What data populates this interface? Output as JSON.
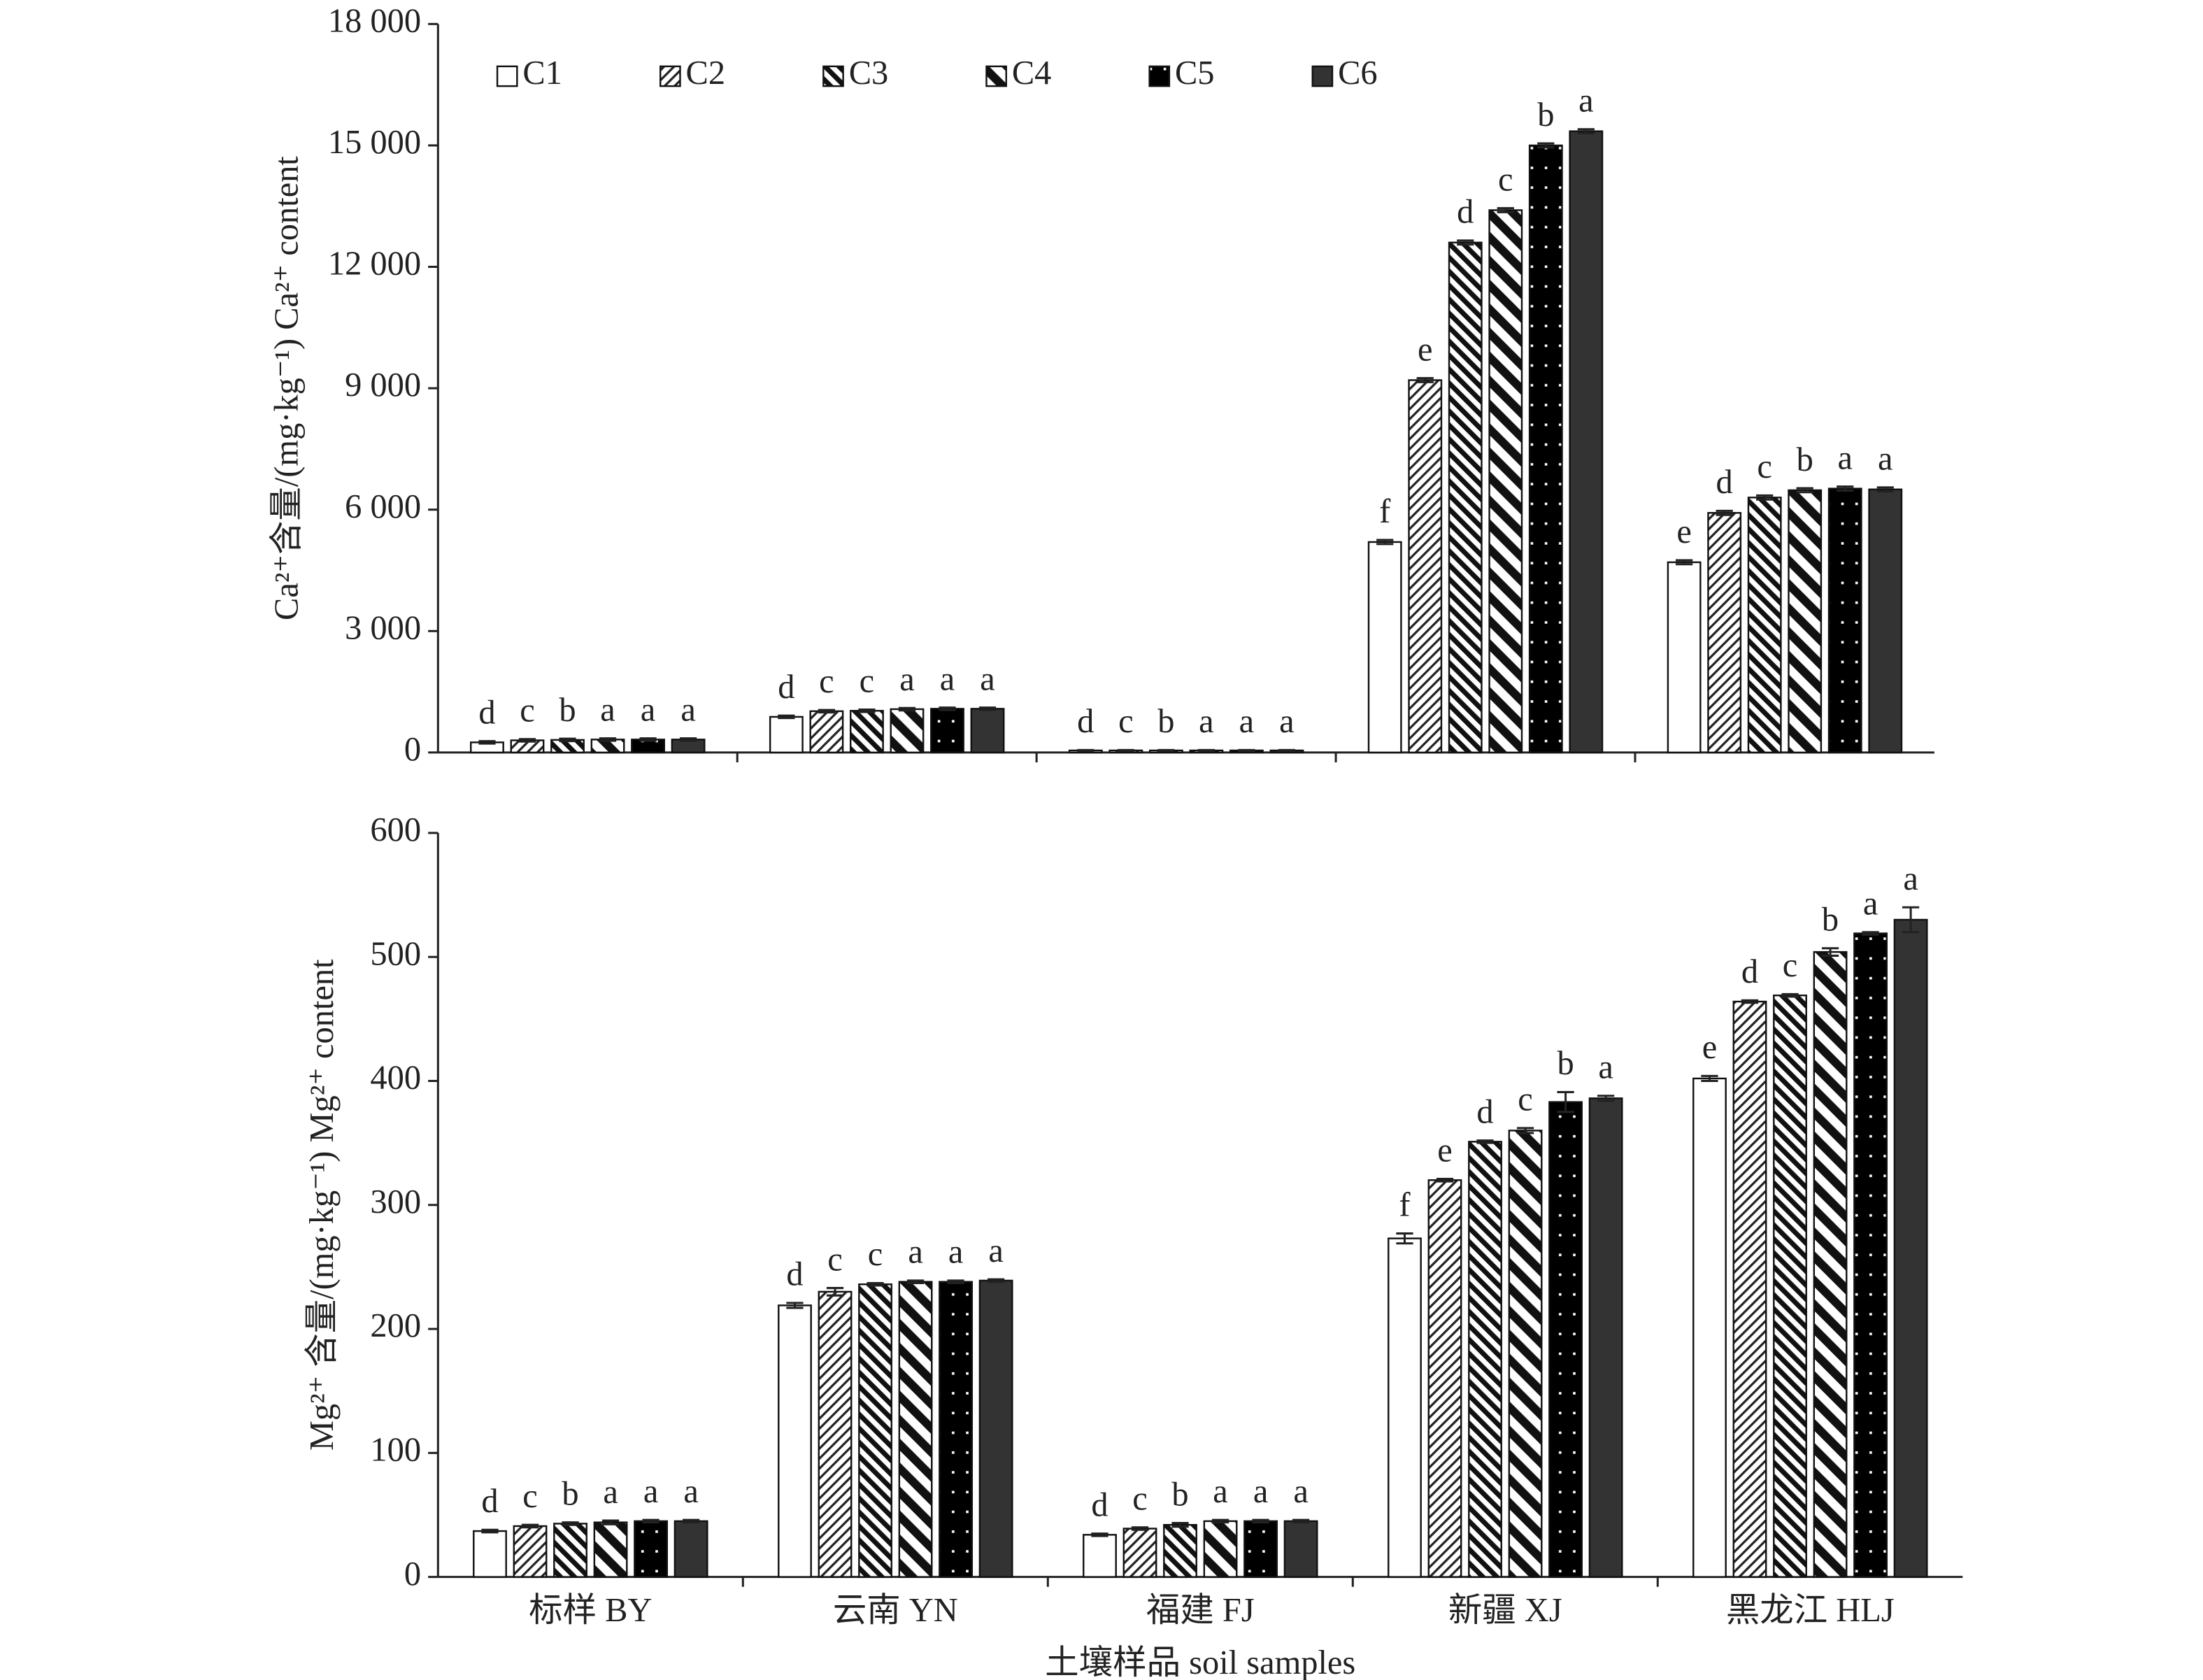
{
  "chart_data": [
    {
      "type": "bar",
      "y_label": "Ca²⁺含量/(mg·kg⁻¹) Ca²⁺ content",
      "categories": [
        null,
        null,
        null,
        null,
        null
      ],
      "ylim": [
        0,
        18000
      ],
      "yticks": [
        0,
        {
          "value": 3000,
          "label": "3 000"
        },
        {
          "value": 6000,
          "label": "6 000"
        },
        {
          "value": 9000,
          "label": "9 000"
        },
        {
          "value": 12000,
          "label": "12 000"
        },
        {
          "value": 15000,
          "label": "15 000"
        },
        {
          "value": 18000,
          "label": "18 000"
        }
      ],
      "legend": "top",
      "series": [
        {
          "name": "C1",
          "color": "#ffffff",
          "values": [
            250,
            880,
            50,
            5200,
            4700
          ],
          "errors": [
            30,
            30,
            10,
            50,
            50
          ],
          "labels": [
            "d",
            "d",
            "d",
            "f",
            "e"
          ]
        },
        {
          "name": "C2",
          "color": "#ffffff",
          "values": [
            300,
            1020,
            50,
            9200,
            5920
          ],
          "errors": [
            30,
            30,
            10,
            50,
            50
          ],
          "labels": [
            "c",
            "c",
            "c",
            "e",
            "d"
          ]
        },
        {
          "name": "C3",
          "color": "#000000",
          "values": [
            310,
            1030,
            50,
            12600,
            6300
          ],
          "errors": [
            30,
            30,
            10,
            50,
            50
          ],
          "labels": [
            "b",
            "c",
            "b",
            "d",
            "c"
          ]
        },
        {
          "name": "C4",
          "color": "#000000",
          "values": [
            320,
            1070,
            50,
            13400,
            6480
          ],
          "errors": [
            30,
            30,
            10,
            50,
            50
          ],
          "labels": [
            "a",
            "a",
            "a",
            "c",
            "b"
          ]
        },
        {
          "name": "C5",
          "color": "#000000",
          "values": [
            320,
            1080,
            50,
            15000,
            6520
          ],
          "errors": [
            30,
            30,
            10,
            50,
            50
          ],
          "labels": [
            "a",
            "a",
            "a",
            "b",
            "a"
          ]
        },
        {
          "name": "C6",
          "color": "#333333",
          "values": [
            320,
            1080,
            50,
            15350,
            6500
          ],
          "errors": [
            30,
            30,
            10,
            50,
            50
          ],
          "labels": [
            "a",
            "a",
            "a",
            "a",
            "a"
          ]
        }
      ]
    },
    {
      "type": "bar",
      "y_label": "Mg²⁺ 含量/(mg·kg⁻¹) Mg²⁺ content",
      "x_label": "土壤样品 soil samples",
      "categories": [
        "标样 BY",
        "云南 YN",
        "福建 FJ",
        "新疆 XJ",
        "黑龙江 HLJ"
      ],
      "ylim": [
        0,
        600
      ],
      "yticks": [
        0,
        100,
        200,
        300,
        400,
        500,
        600
      ],
      "series": [
        {
          "name": "C1",
          "color": "#ffffff",
          "values": [
            37,
            219,
            34,
            273,
            402
          ],
          "errors": [
            1,
            2,
            1,
            4,
            2
          ],
          "labels": [
            "d",
            "d",
            "d",
            "f",
            "e"
          ]
        },
        {
          "name": "C2",
          "color": "#ffffff",
          "values": [
            41,
            230,
            39,
            320,
            464
          ],
          "errors": [
            1,
            3,
            1,
            1,
            1
          ],
          "labels": [
            "c",
            "c",
            "c",
            "e",
            "d"
          ]
        },
        {
          "name": "C3",
          "color": "#000000",
          "values": [
            43,
            236,
            42,
            351,
            469
          ],
          "errors": [
            1,
            1,
            1.5,
            1,
            1
          ],
          "labels": [
            "b",
            "c",
            "b",
            "d",
            "c"
          ]
        },
        {
          "name": "C4",
          "color": "#000000",
          "values": [
            44,
            238,
            45,
            360,
            504
          ],
          "errors": [
            1.5,
            1,
            1,
            2,
            3
          ],
          "labels": [
            "a",
            "a",
            "a",
            "c",
            "b"
          ]
        },
        {
          "name": "C5",
          "color": "#000000",
          "values": [
            45,
            238,
            45,
            383,
            519
          ],
          "errors": [
            1,
            1,
            1,
            8,
            1
          ],
          "labels": [
            "a",
            "a",
            "a",
            "b",
            "a"
          ]
        },
        {
          "name": "C6",
          "color": "#333333",
          "values": [
            45,
            239,
            45,
            386,
            530
          ],
          "errors": [
            1,
            1,
            1,
            2,
            10
          ],
          "labels": [
            "a",
            "a",
            "a",
            "a",
            "a"
          ]
        }
      ]
    }
  ]
}
